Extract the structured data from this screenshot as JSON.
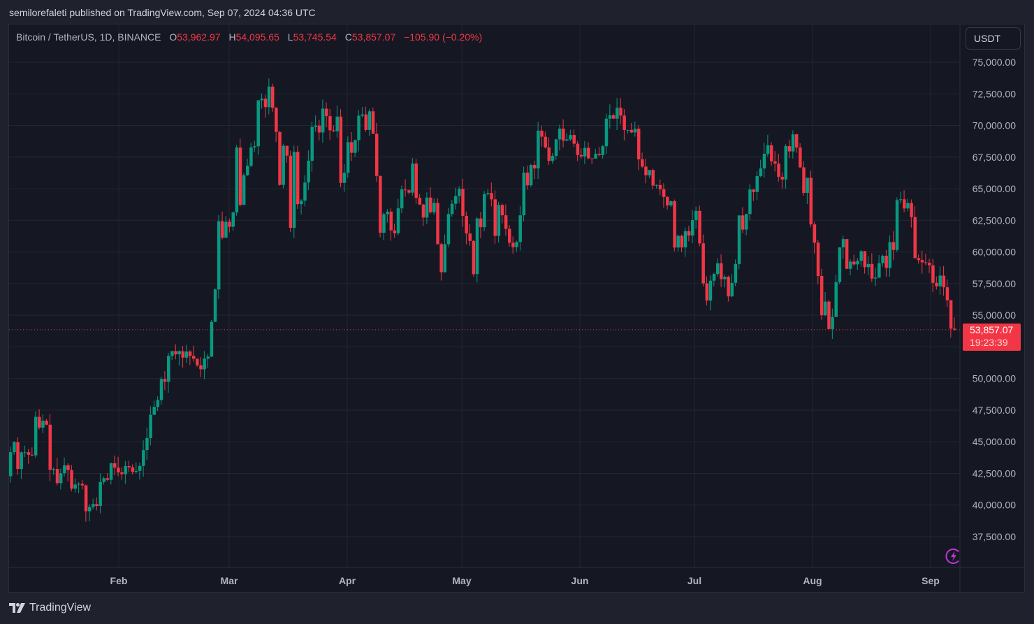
{
  "header": {
    "published_text": "semilorefaleti published on TradingView.com, Sep 07, 2024 04:36 UTC"
  },
  "legend": {
    "symbol": "Bitcoin / TetherUS, 1D, BINANCE",
    "open_label": "O",
    "open": "53,962.97",
    "high_label": "H",
    "high": "54,095.65",
    "low_label": "L",
    "low": "53,745.54",
    "close_label": "C",
    "close": "53,857.07",
    "change": "−105.90 (−0.20%)"
  },
  "currency_button": {
    "label": "USDT"
  },
  "last_price": {
    "price": "53,857.07",
    "countdown": "19:23:39"
  },
  "footer": {
    "brand": "TradingView"
  },
  "colors": {
    "up": "#089981",
    "down": "#f23645",
    "background": "#151823",
    "grid": "#232632",
    "text": "#b2b5be",
    "accent_bolt": "#c035d6"
  },
  "chart_data": {
    "type": "candlestick",
    "title": "Bitcoin / TetherUS, 1D, BINANCE",
    "xlabel": "",
    "ylabel": "USDT",
    "ylim": [
      35500,
      77000
    ],
    "y_ticks": [
      "75,000.00",
      "72,500.00",
      "70,000.00",
      "67,500.00",
      "65,000.00",
      "62,500.00",
      "60,000.00",
      "57,500.00",
      "55,000.00",
      "50,000.00",
      "47,500.00",
      "45,000.00",
      "42,500.00",
      "40,000.00",
      "37,500.00"
    ],
    "x_ticks": [
      {
        "label": "Feb",
        "x": 170
      },
      {
        "label": "Mar",
        "x": 328
      },
      {
        "label": "Apr",
        "x": 497
      },
      {
        "label": "May",
        "x": 661
      },
      {
        "label": "Jun",
        "x": 830
      },
      {
        "label": "Jul",
        "x": 994
      },
      {
        "label": "Aug",
        "x": 1163
      },
      {
        "label": "Sep",
        "x": 1332
      }
    ],
    "grid": true,
    "last_price": 53857.07,
    "closes": [
      44180,
      44960,
      42850,
      44160,
      44170,
      43970,
      43930,
      46970,
      46120,
      46660,
      46350,
      42780,
      42850,
      41730,
      42510,
      43140,
      42760,
      41290,
      41620,
      41670,
      41550,
      39510,
      39850,
      40080,
      39930,
      41820,
      42120,
      41990,
      43300,
      42950,
      42580,
      42440,
      43080,
      42980,
      42620,
      42700,
      43090,
      44340,
      45290,
      47130,
      47750,
      48300,
      49960,
      49740,
      51790,
      52170,
      51910,
      52160,
      51650,
      52130,
      51790,
      51560,
      51050,
      50730,
      51570,
      51730,
      54480,
      57040,
      62430,
      61130,
      62390,
      61990,
      63130,
      68250,
      63720,
      66070,
      66820,
      68260,
      68360,
      71990,
      72110,
      71450,
      73070,
      71390,
      69490,
      65300,
      68390,
      67610,
      61910,
      67910,
      63780,
      64060,
      65490,
      67210,
      69880,
      69990,
      69450,
      71330,
      70740,
      69620,
      69540,
      70700,
      65460,
      66260,
      68680,
      67840,
      68840,
      70770,
      70870,
      69650,
      71120,
      69340,
      66010,
      61520,
      62990,
      63190,
      61710,
      61480,
      63450,
      64940,
      64880,
      64690,
      66990,
      64280,
      63750,
      62720,
      64300,
      63130,
      63880,
      60620,
      58400,
      60620,
      63000,
      63810,
      64420,
      64990,
      62850,
      61460,
      60870,
      58250,
      62650,
      61960,
      64570,
      64660,
      64160,
      61270,
      63720,
      62900,
      61830,
      60730,
      60380,
      60790,
      62900,
      66270,
      65270,
      66880,
      66600,
      69590,
      69110,
      68260,
      67200,
      67600,
      68900,
      69750,
      68800,
      68900,
      69250,
      68560,
      67670,
      67550,
      68230,
      67400,
      67380,
      67750,
      67660,
      68360,
      70540,
      70800,
      70540,
      71400,
      70780,
      69640,
      69650,
      69450,
      69740,
      67320,
      66750,
      66060,
      66480,
      65250,
      65290,
      64960,
      64350,
      63680,
      64010,
      60350,
      61280,
      60360,
      61650,
      61300,
      62520,
      63250,
      60680,
      57520,
      56160,
      57730,
      58260,
      59110,
      57850,
      58040,
      56490,
      57560,
      59050,
      62890,
      61770,
      63000,
      64940,
      64740,
      66000,
      66600,
      67760,
      68430,
      67160,
      66980,
      65940,
      65730,
      68370,
      67950,
      69300,
      68250,
      66690,
      64670,
      65860,
      62180,
      60740,
      58100,
      55000,
      56080,
      53910,
      54860,
      57620,
      60360,
      61020,
      58670,
      59240,
      59020,
      59300,
      60060,
      58800,
      59050,
      57900,
      57970,
      59120,
      59700,
      58740,
      60780,
      60160,
      64100,
      64160,
      63440,
      63870,
      62760,
      59510,
      59360,
      59180,
      59150,
      58950,
      57560,
      57290,
      58130,
      57210,
      56180,
      53940,
      53857
    ]
  }
}
